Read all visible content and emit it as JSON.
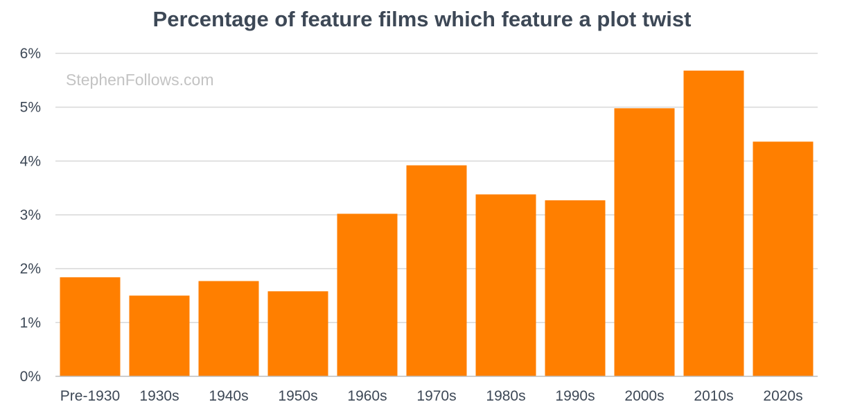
{
  "chart_data": {
    "type": "bar",
    "title": "Percentage of feature films which feature a plot twist",
    "watermark": "StephenFollows.com",
    "xlabel": "",
    "ylabel": "",
    "categories": [
      "Pre-1930",
      "1930s",
      "1940s",
      "1950s",
      "1960s",
      "1970s",
      "1980s",
      "1990s",
      "2000s",
      "2010s",
      "2020s"
    ],
    "values": [
      1.84,
      1.5,
      1.77,
      1.58,
      3.02,
      3.92,
      3.38,
      3.27,
      4.98,
      5.68,
      4.36
    ],
    "yticks": [
      0,
      1,
      2,
      3,
      4,
      5,
      6
    ],
    "ytick_labels": [
      "0%",
      "1%",
      "2%",
      "3%",
      "4%",
      "5%",
      "6%"
    ],
    "ylim": [
      0,
      6
    ],
    "y_unit": "%",
    "grid": true,
    "legend": "none",
    "bar_color": "#ff7f00"
  }
}
